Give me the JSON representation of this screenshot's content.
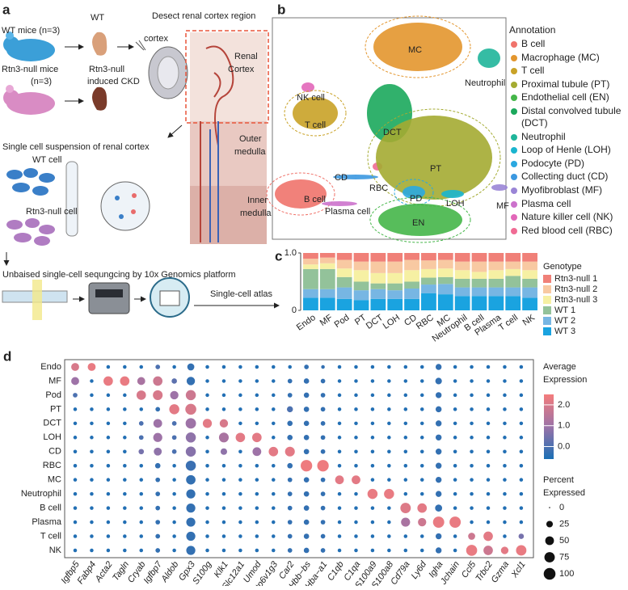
{
  "panel_a": {
    "label": "a",
    "texts": [
      "WT mice (n=3)",
      "WT",
      "Rtn3-null mice",
      "(n=3)",
      "Rtn3-null",
      "induced CKD",
      "Desect renal cortex region",
      "cortex",
      "Renal",
      "Cortex",
      "Outer",
      "medulla",
      "Inner",
      "medulla",
      "Single cell suspension of renal cortex",
      "WT cell",
      "Rtn3-null cell",
      "Unbaised single-cell sequngcing by 10x Genomics platform",
      "Single-cell atlas"
    ]
  },
  "panel_b": {
    "label": "b",
    "legend_title": "Annotation",
    "annotations": [
      {
        "name": "B cell",
        "color": "#f0736b"
      },
      {
        "name": "Macrophage (MC)",
        "color": "#e3962e"
      },
      {
        "name": "T cell",
        "color": "#c9a227"
      },
      {
        "name": "Proximal tubule (PT)",
        "color": "#a4ab32"
      },
      {
        "name": "Endothelial cell (EN)",
        "color": "#45b649"
      },
      {
        "name": "Distal convolved tubule (DCT)",
        "color": "#1ba85c"
      },
      {
        "name": "Neutrophil",
        "color": "#1fb59a"
      },
      {
        "name": "Loop of Henle (LOH)",
        "color": "#1ab5cf"
      },
      {
        "name": "Podocyte (PD)",
        "color": "#2aa8e0"
      },
      {
        "name": "Collecting duct (CD)",
        "color": "#3b98e0"
      },
      {
        "name": "Myofibroblast (MF)",
        "color": "#9a85d6"
      },
      {
        "name": "Plasma cell",
        "color": "#cc72cc"
      },
      {
        "name": "Nature killer cell (NK)",
        "color": "#e267b9"
      },
      {
        "name": "Red blood cell (RBC)",
        "color": "#f06b94"
      }
    ],
    "clusters": [
      "MC",
      "NK cell",
      "T cell",
      "DCT",
      "Neutrophil",
      "CD",
      "RBC",
      "PT",
      "B cell",
      "PD",
      "LOH",
      "MF",
      "Plasma cell",
      "EN"
    ]
  },
  "chart_data": [
    {
      "type": "stacked_bar",
      "label": "c",
      "legend_title": "Genotype",
      "categories": [
        "Endo",
        "MF",
        "Pod",
        "PT",
        "DCT",
        "LOH",
        "CD",
        "RBC",
        "MC",
        "Neutrophil",
        "B cell",
        "Plasma",
        "T cell",
        "NK"
      ],
      "series": [
        {
          "name": "Rtn3-null 1",
          "color": "#f08078",
          "values": [
            0.1,
            0.08,
            0.12,
            0.15,
            0.15,
            0.15,
            0.12,
            0.13,
            0.12,
            0.15,
            0.15,
            0.15,
            0.15,
            0.15
          ]
        },
        {
          "name": "Rtn3-null 2",
          "color": "#f8c9a2",
          "values": [
            0.1,
            0.1,
            0.15,
            0.15,
            0.2,
            0.2,
            0.18,
            0.15,
            0.15,
            0.15,
            0.18,
            0.15,
            0.13,
            0.15
          ]
        },
        {
          "name": "Rtn3-null 3",
          "color": "#f6f0a3",
          "values": [
            0.08,
            0.1,
            0.15,
            0.2,
            0.18,
            0.18,
            0.2,
            0.15,
            0.15,
            0.15,
            0.12,
            0.15,
            0.12,
            0.15
          ]
        },
        {
          "name": "WT 1",
          "color": "#93c29a",
          "values": [
            0.35,
            0.35,
            0.18,
            0.15,
            0.1,
            0.12,
            0.12,
            0.12,
            0.12,
            0.15,
            0.15,
            0.15,
            0.2,
            0.15
          ]
        },
        {
          "name": "WT 2",
          "color": "#77b6e3",
          "values": [
            0.15,
            0.15,
            0.2,
            0.17,
            0.17,
            0.15,
            0.18,
            0.15,
            0.18,
            0.15,
            0.15,
            0.15,
            0.15,
            0.18
          ]
        },
        {
          "name": "WT 3",
          "color": "#1aa3e0",
          "values": [
            0.22,
            0.22,
            0.2,
            0.18,
            0.2,
            0.2,
            0.2,
            0.3,
            0.28,
            0.25,
            0.25,
            0.25,
            0.25,
            0.22
          ]
        }
      ],
      "ylim": [
        0,
        1
      ],
      "yticks": [
        0,
        {
          "value": 1,
          "label": "1.0"
        }
      ]
    },
    {
      "type": "dot",
      "label": "d",
      "rows": [
        "Endo",
        "MF",
        "Pod",
        "PT",
        "DCT",
        "LOH",
        "CD",
        "RBC",
        "MC",
        "Neutrophil",
        "B cell",
        "Plasma",
        "T cell",
        "NK"
      ],
      "columns": [
        "Igfbp5",
        "Fabp4",
        "Acta2",
        "Tagln",
        "Cryab",
        "Igfbp7",
        "Aldob",
        "Gpx3",
        "S100g",
        "Klk1",
        "Slc12a1",
        "Umod",
        "Atp6v1g3",
        "Car2",
        "Hbb−bs",
        "Hba−a1",
        "C1qb",
        "C1qa",
        "S100a9",
        "S100a8",
        "Cd79a",
        "Ly6d",
        "Igha",
        "Jchain",
        "Ccl5",
        "Trbc2",
        "Gzma",
        "Xcl1"
      ],
      "percent": [
        [
          40,
          40,
          5,
          5,
          5,
          10,
          5,
          30,
          5,
          5,
          5,
          5,
          5,
          5,
          10,
          5,
          5,
          5,
          5,
          5,
          5,
          5,
          20,
          5,
          5,
          5,
          5,
          5
        ],
        [
          40,
          5,
          60,
          60,
          40,
          60,
          15,
          45,
          5,
          5,
          5,
          5,
          5,
          10,
          15,
          10,
          5,
          5,
          5,
          5,
          5,
          5,
          25,
          5,
          5,
          5,
          5,
          5
        ],
        [
          10,
          5,
          5,
          5,
          60,
          65,
          45,
          70,
          5,
          5,
          5,
          5,
          5,
          10,
          15,
          10,
          5,
          5,
          5,
          5,
          5,
          5,
          20,
          5,
          5,
          5,
          5,
          5
        ],
        [
          5,
          5,
          5,
          5,
          5,
          10,
          70,
          85,
          5,
          5,
          5,
          5,
          5,
          20,
          15,
          10,
          5,
          5,
          5,
          5,
          5,
          5,
          20,
          5,
          5,
          5,
          5,
          5
        ],
        [
          5,
          5,
          5,
          5,
          10,
          50,
          10,
          75,
          55,
          45,
          5,
          5,
          5,
          15,
          15,
          10,
          5,
          5,
          5,
          5,
          5,
          5,
          20,
          5,
          5,
          5,
          5,
          5
        ],
        [
          5,
          5,
          5,
          5,
          10,
          55,
          10,
          70,
          5,
          65,
          60,
          60,
          5,
          15,
          15,
          10,
          5,
          5,
          5,
          5,
          5,
          5,
          20,
          5,
          5,
          5,
          5,
          5
        ],
        [
          5,
          5,
          5,
          5,
          15,
          40,
          10,
          70,
          5,
          25,
          5,
          50,
          60,
          65,
          15,
          10,
          5,
          5,
          5,
          5,
          5,
          5,
          20,
          5,
          5,
          5,
          5,
          5
        ],
        [
          5,
          5,
          5,
          5,
          5,
          15,
          5,
          70,
          5,
          5,
          5,
          5,
          5,
          15,
          95,
          95,
          5,
          5,
          5,
          5,
          5,
          5,
          20,
          5,
          5,
          5,
          5,
          5
        ],
        [
          5,
          5,
          5,
          5,
          5,
          10,
          5,
          60,
          5,
          5,
          5,
          5,
          5,
          10,
          15,
          10,
          50,
          50,
          5,
          5,
          5,
          5,
          20,
          5,
          5,
          5,
          5,
          5
        ],
        [
          5,
          5,
          5,
          5,
          5,
          10,
          5,
          55,
          5,
          5,
          5,
          5,
          5,
          10,
          15,
          10,
          5,
          5,
          70,
          70,
          5,
          5,
          20,
          5,
          5,
          5,
          5,
          5
        ],
        [
          5,
          5,
          5,
          5,
          5,
          10,
          5,
          55,
          5,
          5,
          5,
          5,
          5,
          10,
          15,
          10,
          5,
          5,
          5,
          5,
          75,
          60,
          30,
          5,
          5,
          5,
          5,
          5
        ],
        [
          5,
          5,
          5,
          5,
          5,
          10,
          5,
          55,
          5,
          5,
          5,
          5,
          5,
          10,
          15,
          10,
          5,
          5,
          5,
          5,
          55,
          45,
          90,
          90,
          5,
          5,
          5,
          5
        ],
        [
          5,
          5,
          5,
          5,
          5,
          10,
          5,
          55,
          5,
          5,
          5,
          5,
          5,
          10,
          15,
          10,
          5,
          5,
          5,
          5,
          5,
          5,
          20,
          5,
          30,
          60,
          5,
          15
        ],
        [
          5,
          5,
          5,
          5,
          5,
          10,
          5,
          55,
          5,
          5,
          5,
          5,
          5,
          10,
          15,
          10,
          5,
          5,
          5,
          5,
          5,
          5,
          20,
          5,
          85,
          60,
          35,
          75
        ]
      ],
      "expression": [
        [
          2.0,
          2.3,
          -0.5,
          -0.5,
          -0.5,
          0,
          -0.5,
          -0.3,
          -0.5,
          -0.5,
          -0.5,
          -0.5,
          -0.5,
          -0.5,
          -0.3,
          -0.3,
          -0.5,
          -0.5,
          -0.5,
          -0.5,
          -0.5,
          -0.5,
          -0.3,
          -0.5,
          -0.5,
          -0.5,
          -0.5,
          -0.5
        ],
        [
          1.0,
          -0.5,
          2.3,
          2.3,
          1.2,
          1.8,
          0.2,
          -0.3,
          -0.5,
          -0.5,
          -0.5,
          -0.5,
          -0.5,
          -0.3,
          -0.3,
          -0.3,
          -0.5,
          -0.5,
          -0.5,
          -0.5,
          -0.5,
          -0.5,
          -0.3,
          -0.5,
          -0.5,
          -0.5,
          -0.5,
          -0.5
        ],
        [
          0,
          -0.5,
          -0.5,
          -0.5,
          2.0,
          2.0,
          1.0,
          1.8,
          -0.5,
          -0.5,
          -0.5,
          -0.5,
          -0.5,
          -0.3,
          -0.3,
          -0.3,
          -0.5,
          -0.5,
          -0.5,
          -0.5,
          -0.5,
          -0.5,
          -0.3,
          -0.5,
          -0.5,
          -0.5,
          -0.5,
          -0.5
        ],
        [
          -0.5,
          -0.5,
          -0.5,
          -0.5,
          -0.5,
          -0.3,
          2.2,
          2.0,
          -0.5,
          -0.5,
          -0.5,
          -0.5,
          -0.5,
          0,
          -0.3,
          -0.3,
          -0.5,
          -0.5,
          -0.5,
          -0.5,
          -0.5,
          -0.5,
          -0.3,
          -0.5,
          -0.5,
          -0.5,
          -0.5,
          -0.5
        ],
        [
          -0.5,
          -0.5,
          -0.5,
          -0.5,
          0,
          1.0,
          0,
          1.0,
          2.2,
          2.0,
          -0.5,
          -0.5,
          -0.5,
          -0.3,
          -0.3,
          -0.3,
          -0.5,
          -0.5,
          -0.5,
          -0.5,
          -0.5,
          -0.5,
          -0.3,
          -0.5,
          -0.5,
          -0.5,
          -0.5,
          -0.5
        ],
        [
          -0.5,
          -0.5,
          -0.5,
          -0.5,
          0,
          1.0,
          0,
          0.8,
          -0.5,
          1.2,
          2.2,
          2.2,
          -0.5,
          -0.3,
          -0.3,
          -0.3,
          -0.5,
          -0.5,
          -0.5,
          -0.5,
          -0.5,
          -0.5,
          -0.3,
          -0.5,
          -0.5,
          -0.5,
          -0.5,
          -0.5
        ],
        [
          -0.5,
          -0.5,
          -0.5,
          -0.5,
          0.5,
          0.8,
          0,
          0.7,
          -0.5,
          0.8,
          -0.5,
          1.0,
          2.2,
          2.2,
          -0.3,
          -0.3,
          -0.5,
          -0.5,
          -0.5,
          -0.5,
          -0.5,
          -0.5,
          -0.3,
          -0.5,
          -0.5,
          -0.5,
          -0.5,
          -0.5
        ],
        [
          -0.5,
          -0.5,
          -0.5,
          -0.5,
          -0.5,
          -0.3,
          -0.5,
          -0.2,
          -0.5,
          -0.5,
          -0.5,
          -0.5,
          -0.5,
          -0.3,
          2.4,
          2.4,
          -0.5,
          -0.5,
          -0.5,
          -0.5,
          -0.5,
          -0.5,
          -0.3,
          -0.5,
          -0.5,
          -0.5,
          -0.5,
          -0.5
        ],
        [
          -0.5,
          -0.5,
          -0.5,
          -0.5,
          -0.5,
          -0.3,
          -0.5,
          -0.3,
          -0.5,
          -0.5,
          -0.5,
          -0.5,
          -0.5,
          -0.3,
          -0.3,
          -0.3,
          2.2,
          2.2,
          -0.5,
          -0.5,
          -0.5,
          -0.5,
          -0.3,
          -0.5,
          -0.5,
          -0.5,
          -0.5,
          -0.5
        ],
        [
          -0.5,
          -0.5,
          -0.5,
          -0.5,
          -0.5,
          -0.3,
          -0.5,
          -0.3,
          -0.5,
          -0.5,
          -0.5,
          -0.5,
          -0.5,
          -0.3,
          -0.3,
          -0.3,
          -0.5,
          -0.5,
          2.3,
          2.3,
          -0.5,
          -0.5,
          -0.3,
          -0.5,
          -0.5,
          -0.5,
          -0.5,
          -0.5
        ],
        [
          -0.5,
          -0.5,
          -0.5,
          -0.5,
          -0.5,
          -0.3,
          -0.5,
          -0.3,
          -0.5,
          -0.5,
          -0.5,
          -0.5,
          -0.5,
          -0.3,
          -0.3,
          -0.3,
          -0.5,
          -0.5,
          -0.5,
          -0.5,
          2.1,
          2.2,
          -0.3,
          -0.5,
          -0.5,
          -0.5,
          -0.5,
          -0.5
        ],
        [
          -0.5,
          -0.5,
          -0.5,
          -0.5,
          -0.5,
          -0.3,
          -0.5,
          -0.3,
          -0.5,
          -0.5,
          -0.5,
          -0.5,
          -0.5,
          -0.3,
          -0.3,
          -0.3,
          -0.5,
          -0.5,
          -0.5,
          -0.5,
          1.2,
          1.8,
          2.3,
          2.3,
          -0.5,
          -0.5,
          -0.5,
          -0.5
        ],
        [
          -0.5,
          -0.5,
          -0.5,
          -0.5,
          -0.5,
          -0.3,
          -0.5,
          -0.3,
          -0.5,
          -0.5,
          -0.5,
          -0.5,
          -0.5,
          -0.3,
          -0.3,
          -0.3,
          -0.5,
          -0.5,
          -0.5,
          -0.5,
          -0.5,
          -0.5,
          -0.3,
          -0.5,
          1.8,
          2.2,
          -0.5,
          0.5
        ],
        [
          -0.5,
          -0.5,
          -0.5,
          -0.5,
          -0.5,
          -0.3,
          -0.5,
          -0.3,
          -0.5,
          -0.5,
          -0.5,
          -0.5,
          -0.5,
          -0.3,
          -0.3,
          -0.3,
          -0.5,
          -0.5,
          -0.5,
          -0.5,
          -0.5,
          -0.5,
          -0.3,
          -0.5,
          2.3,
          1.8,
          2.2,
          2.3
        ]
      ],
      "color_legend_title": [
        "Average",
        "Expression"
      ],
      "color_lim": [
        -0.6,
        2.5
      ],
      "colors": [
        "#1a6fb5",
        "#9b73a8",
        "#f47c7c"
      ],
      "color_ticks": [
        {
          "value": 0,
          "label": "0.0"
        },
        {
          "value": 1,
          "label": "1.0"
        },
        {
          "value": 2,
          "label": "2.0"
        }
      ],
      "size_legend_title": [
        "Percent",
        "Expressed"
      ],
      "size_ticks": [
        0,
        25,
        50,
        75,
        100
      ]
    }
  ]
}
